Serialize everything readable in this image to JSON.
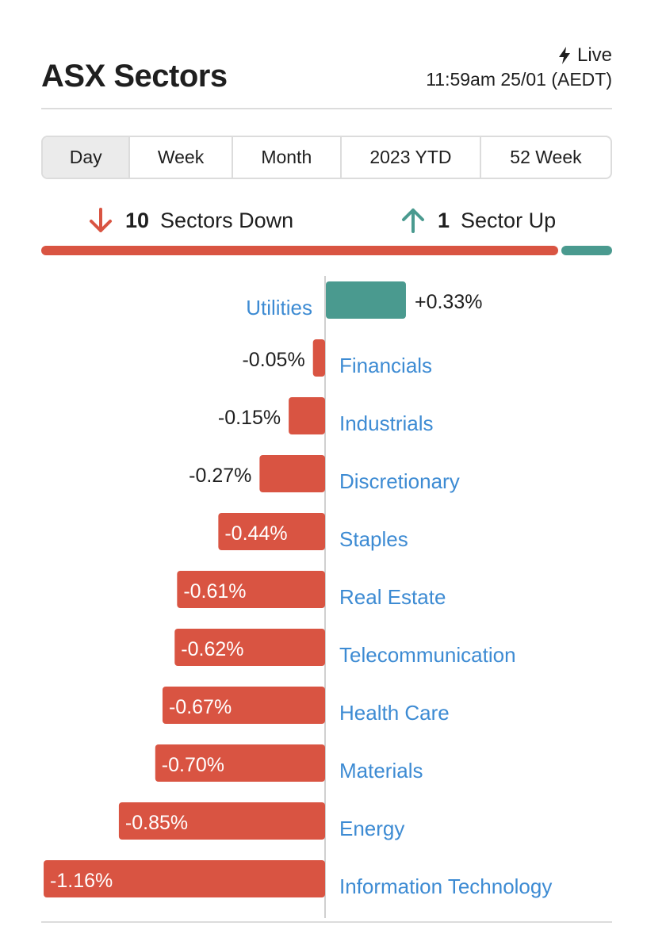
{
  "header": {
    "title": "ASX Sectors",
    "live_label": "Live",
    "timestamp": "11:59am 25/01 (AEDT)",
    "live_icon": "lightning-icon"
  },
  "tabs": [
    {
      "label": "Day",
      "active": true
    },
    {
      "label": "Week",
      "active": false
    },
    {
      "label": "Month",
      "active": false
    },
    {
      "label": "2023 YTD",
      "active": false
    },
    {
      "label": "52 Week",
      "active": false
    }
  ],
  "summary": {
    "down_count": "10",
    "down_label": "Sectors Down",
    "down_icon": "arrow-down-icon",
    "up_count": "1",
    "up_label": "Sector Up",
    "up_icon": "arrow-up-icon"
  },
  "colors": {
    "up": "#4a9a8f",
    "down": "#d95442",
    "link": "#3d8bd3",
    "axis": "#d0d0d0"
  },
  "chart_data": {
    "type": "bar",
    "orientation": "horizontal",
    "title": "",
    "xlabel": "",
    "ylabel": "",
    "categories": [
      "Utilities",
      "Financials",
      "Industrials",
      "Discretionary",
      "Staples",
      "Real Estate",
      "Telecommunication",
      "Health Care",
      "Materials",
      "Energy",
      "Information Technology"
    ],
    "values": [
      0.33,
      -0.05,
      -0.15,
      -0.27,
      -0.44,
      -0.61,
      -0.62,
      -0.67,
      -0.7,
      -0.85,
      -1.16
    ],
    "value_labels": [
      "+0.33%",
      "-0.05%",
      "-0.15%",
      "-0.27%",
      "-0.44%",
      "-0.61%",
      "-0.62%",
      "-0.67%",
      "-0.70%",
      "-0.85%",
      "-1.16%"
    ],
    "unit": "%",
    "grid": false,
    "legend": "none"
  }
}
